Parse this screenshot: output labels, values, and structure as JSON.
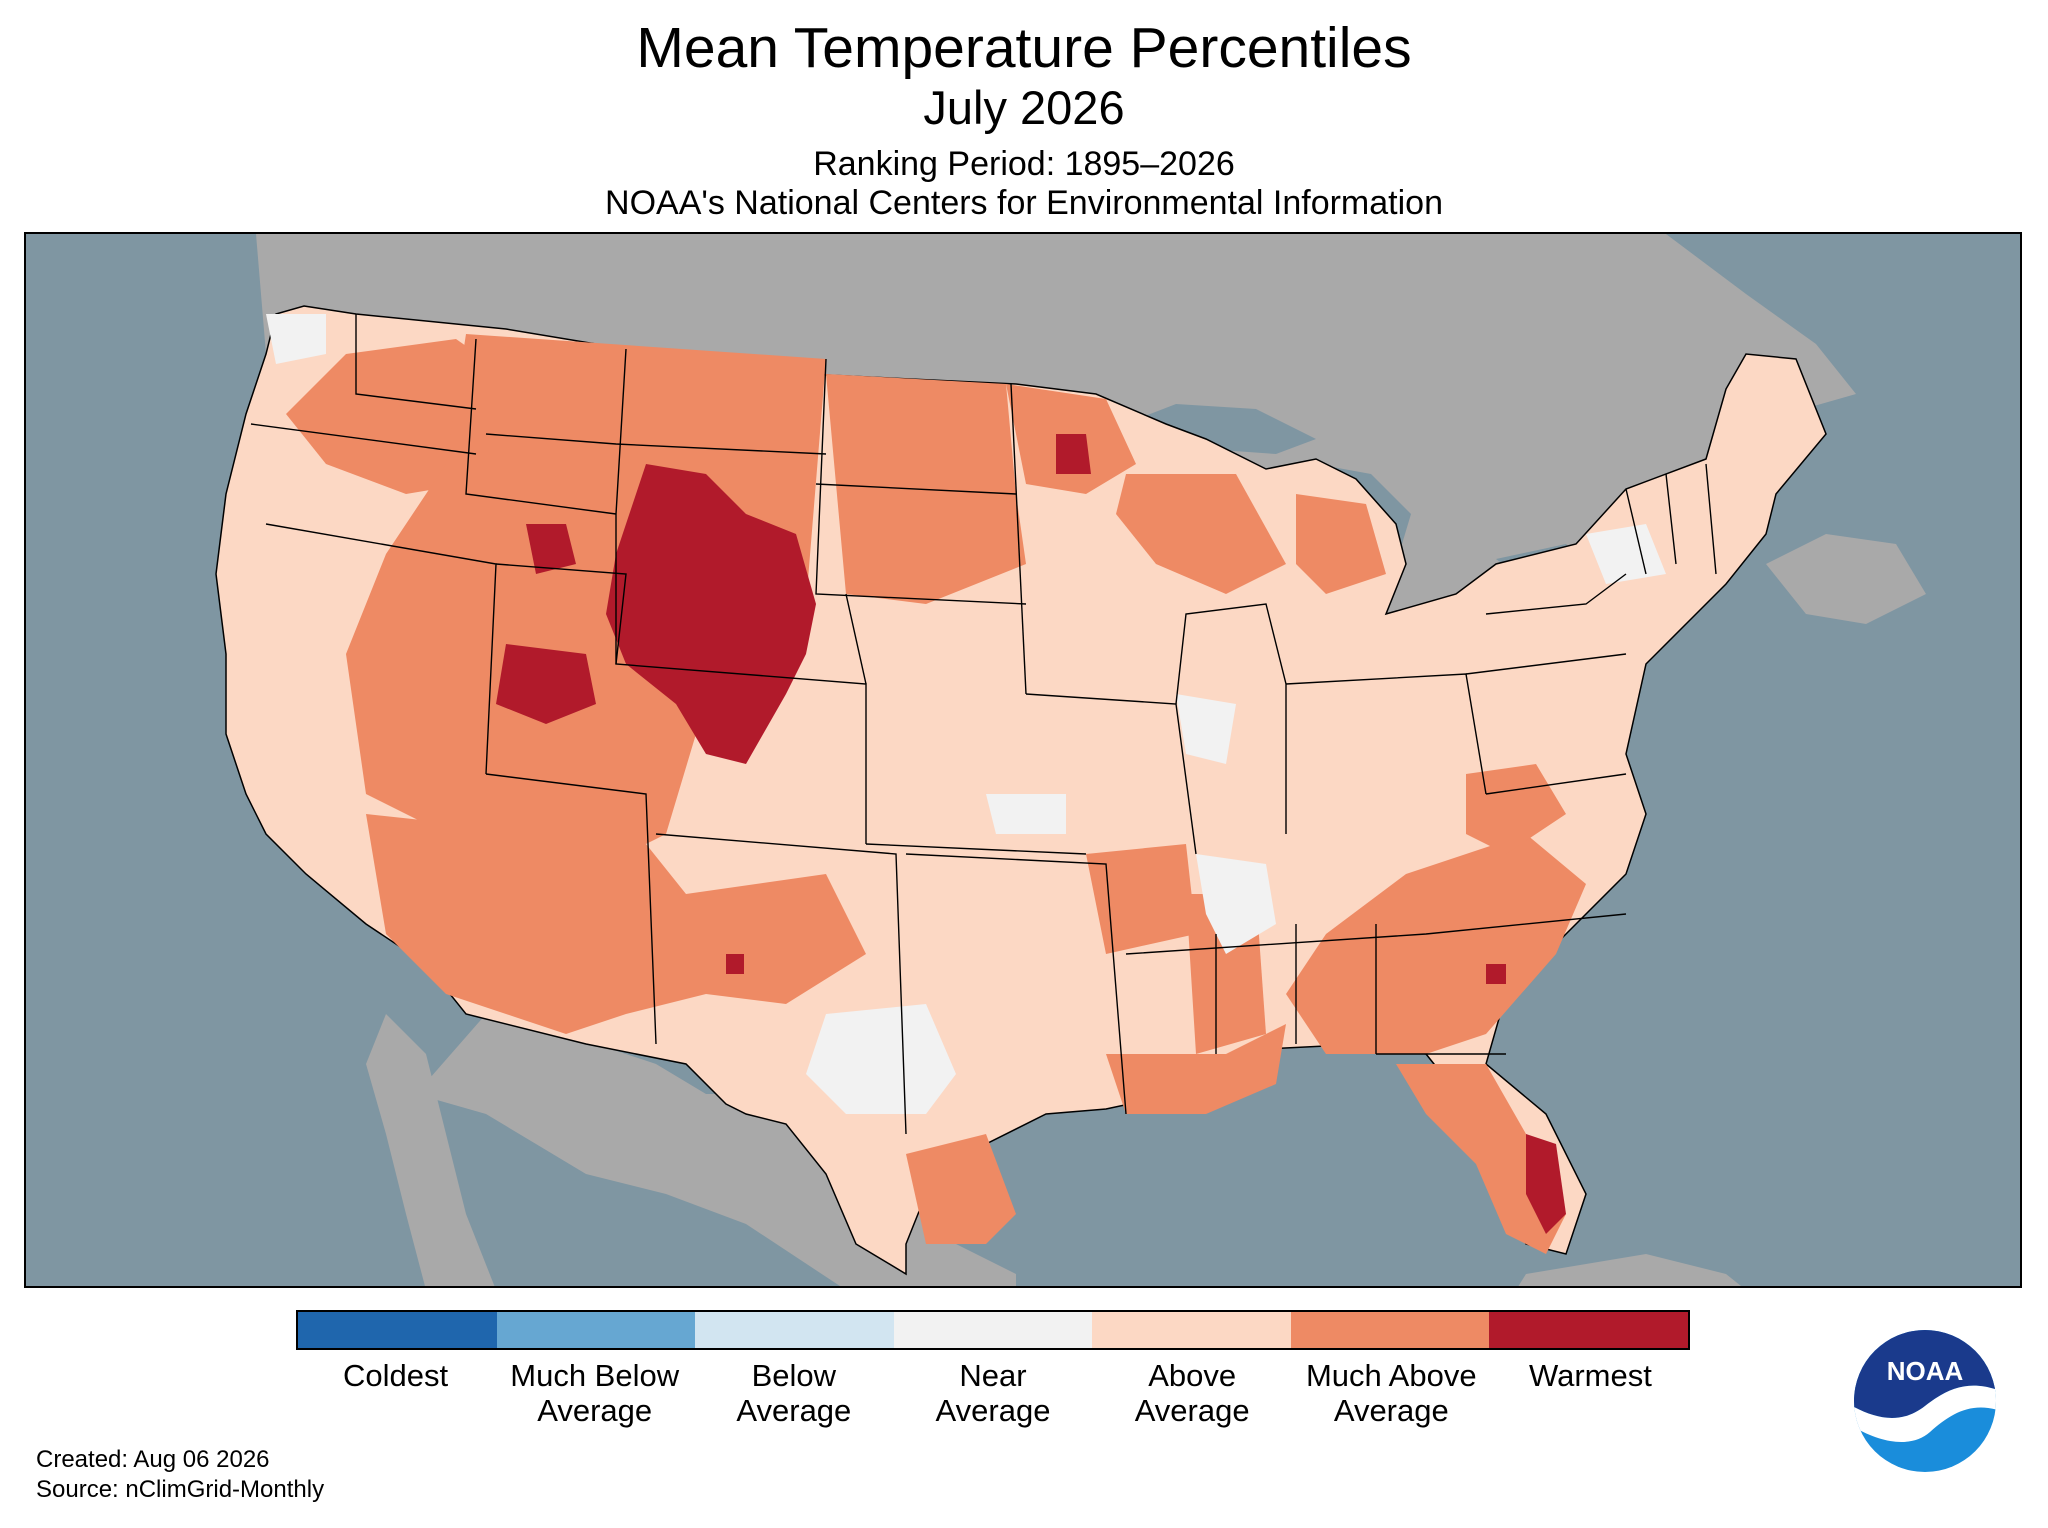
{
  "header": {
    "title": "Mean Temperature Percentiles",
    "subtitle": "July 2026",
    "ranking_period": "Ranking Period: 1895–2026",
    "agency": "NOAA's National Centers for Environmental Information"
  },
  "map": {
    "colors": {
      "ocean": "#7f96a2",
      "land_outside": "#a9a9a9",
      "near_average": "#f2f2f2",
      "above_average": "#fcd8c4",
      "much_above_average": "#ee8a64",
      "warmest": "#b11a2b",
      "state_border": "#000000"
    }
  },
  "legend": {
    "categories": [
      {
        "label": "Coldest",
        "color": "#1f66ad"
      },
      {
        "label": "Much Below Average",
        "color": "#66a7d2"
      },
      {
        "label": "Below Average",
        "color": "#d2e5f1"
      },
      {
        "label": "Near Average",
        "color": "#f2f2f2"
      },
      {
        "label": "Above Average",
        "color": "#fcd8c4"
      },
      {
        "label": "Much Above Average",
        "color": "#ee8a64"
      },
      {
        "label": "Warmest",
        "color": "#b11a2b"
      }
    ]
  },
  "footer": {
    "created": "Created: Aug 06 2026",
    "source": "Source: nClimGrid-Monthly"
  },
  "logo": {
    "text": "NOAA",
    "icon": "noaa-logo-icon",
    "colors": {
      "top": "#1a3a8c",
      "bottom": "#1a8ddb",
      "bird": "#ffffff"
    }
  }
}
